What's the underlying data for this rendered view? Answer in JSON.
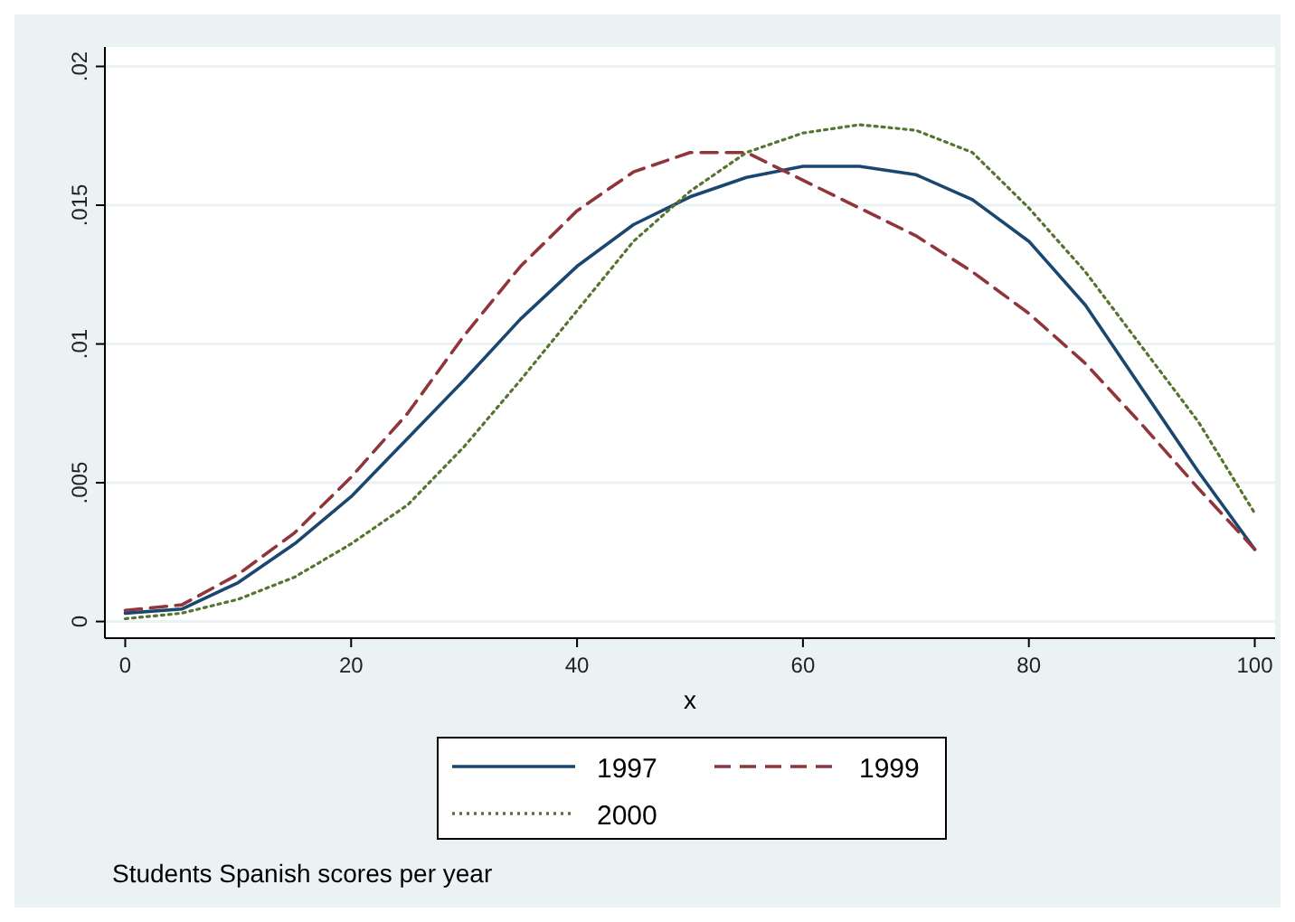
{
  "chart_data": {
    "type": "line",
    "xlabel": "x",
    "annotations": [
      "Students Spanish scores per year"
    ],
    "x": [
      0,
      5,
      10,
      15,
      20,
      25,
      30,
      35,
      40,
      45,
      50,
      55,
      60,
      65,
      70,
      75,
      80,
      85,
      90,
      95,
      100
    ],
    "series": [
      {
        "name": "1997",
        "color": "#1a476f",
        "line_style": "solid",
        "values": [
          0.0003,
          0.00045,
          0.0014,
          0.0028,
          0.0045,
          0.0066,
          0.0087,
          0.0109,
          0.0128,
          0.0143,
          0.0153,
          0.016,
          0.0164,
          0.0164,
          0.0161,
          0.0152,
          0.0137,
          0.0114,
          0.0084,
          0.0054,
          0.0026
        ]
      },
      {
        "name": "1999",
        "color": "#90353b",
        "line_style": "dashed",
        "values": [
          0.0004,
          0.0006,
          0.0017,
          0.0032,
          0.0052,
          0.0075,
          0.0103,
          0.0128,
          0.0148,
          0.0162,
          0.0169,
          0.0169,
          0.0159,
          0.0149,
          0.0139,
          0.0126,
          0.0111,
          0.0093,
          0.0071,
          0.0048,
          0.0026
        ]
      },
      {
        "name": "2000",
        "color": "#55752f",
        "line_style": "dotted",
        "values": [
          0.0001,
          0.0003,
          0.0008,
          0.0016,
          0.0028,
          0.0042,
          0.0063,
          0.0087,
          0.0112,
          0.0137,
          0.0155,
          0.0169,
          0.0176,
          0.0179,
          0.0177,
          0.0169,
          0.0149,
          0.0126,
          0.0099,
          0.0072,
          0.0039
        ]
      }
    ],
    "xlim": [
      -1.8,
      101.8
    ],
    "xticks": [
      0,
      20,
      40,
      60,
      80,
      100
    ],
    "ylim": [
      -0.0006,
      0.0207
    ],
    "yticks": [
      {
        "value": 0,
        "label": "0"
      },
      {
        "value": 0.005,
        "label": ".005"
      },
      {
        "value": 0.01,
        "label": ".01"
      },
      {
        "value": 0.015,
        "label": ".015"
      },
      {
        "value": 0.02,
        "label": ".02"
      }
    ],
    "grid": "y",
    "legend": "bottom",
    "marker": "none"
  }
}
